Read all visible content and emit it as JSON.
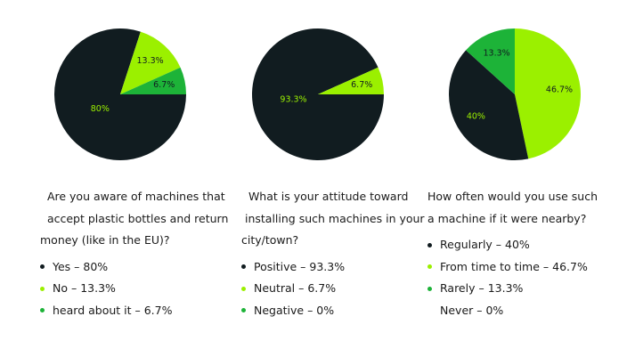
{
  "chart_data": [
    {
      "type": "pie",
      "slices": [
        {
          "name": "Yes",
          "value": 80,
          "label": "80%",
          "color": "#111c20",
          "label_color": "#9bf000"
        },
        {
          "name": "No",
          "value": 13.3,
          "label": "13.3%",
          "color": "#9bf000",
          "label_color": "#111c20"
        },
        {
          "name": "heard about it",
          "value": 6.7,
          "label": "6.7%",
          "color": "#1db338",
          "label_color": "#111c20"
        }
      ],
      "question_lines": [
        "  Are you aware of machines that",
        "  accept plastic bottles and return",
        "money (like in the EU)?"
      ],
      "legend": [
        {
          "text": "Yes – 80%",
          "color": "#111c20"
        },
        {
          "text": "No – 13.3%",
          "color": "#9bf000"
        },
        {
          "text": "heard about it – 6.7%",
          "color": "#1db338"
        }
      ]
    },
    {
      "type": "pie",
      "slices": [
        {
          "name": "Positive",
          "value": 93.3,
          "label": "93.3%",
          "color": "#111c20",
          "label_color": "#9bf000"
        },
        {
          "name": "Neutral",
          "value": 6.7,
          "label": "6.7%",
          "color": "#9bf000",
          "label_color": "#111c20"
        },
        {
          "name": "Negative",
          "value": 0,
          "label": "",
          "color": "#1db338",
          "label_color": "#111c20"
        }
      ],
      "question_lines": [
        "  What is your attitude toward",
        " installing such machines in your",
        "city/town?"
      ],
      "legend": [
        {
          "text": "Positive – 93.3%",
          "color": "#111c20"
        },
        {
          "text": "Neutral – 6.7%",
          "color": "#9bf000"
        },
        {
          "text": "Negative – 0%",
          "color": "#1db338"
        }
      ]
    },
    {
      "type": "pie",
      "slices": [
        {
          "name": "From time to time",
          "value": 46.7,
          "label": "46.7%",
          "color": "#9bf000",
          "label_color": "#111c20"
        },
        {
          "name": "Regularly",
          "value": 40,
          "label": "40%",
          "color": "#111c20",
          "label_color": "#9bf000"
        },
        {
          "name": "Rarely",
          "value": 13.3,
          "label": "13.3%",
          "color": "#1db338",
          "label_color": "#111c20"
        }
      ],
      "question_lines": [
        "How often would you use such",
        "a machine if it were nearby?"
      ],
      "legend": [
        {
          "text": "Regularly – 40%",
          "color": "#111c20"
        },
        {
          "text": "From time to time – 46.7%",
          "color": "#9bf000"
        },
        {
          "text": "Rarely – 13.3%",
          "color": "#1db338"
        },
        {
          "text": "Never – 0%",
          "color": ""
        }
      ]
    }
  ]
}
